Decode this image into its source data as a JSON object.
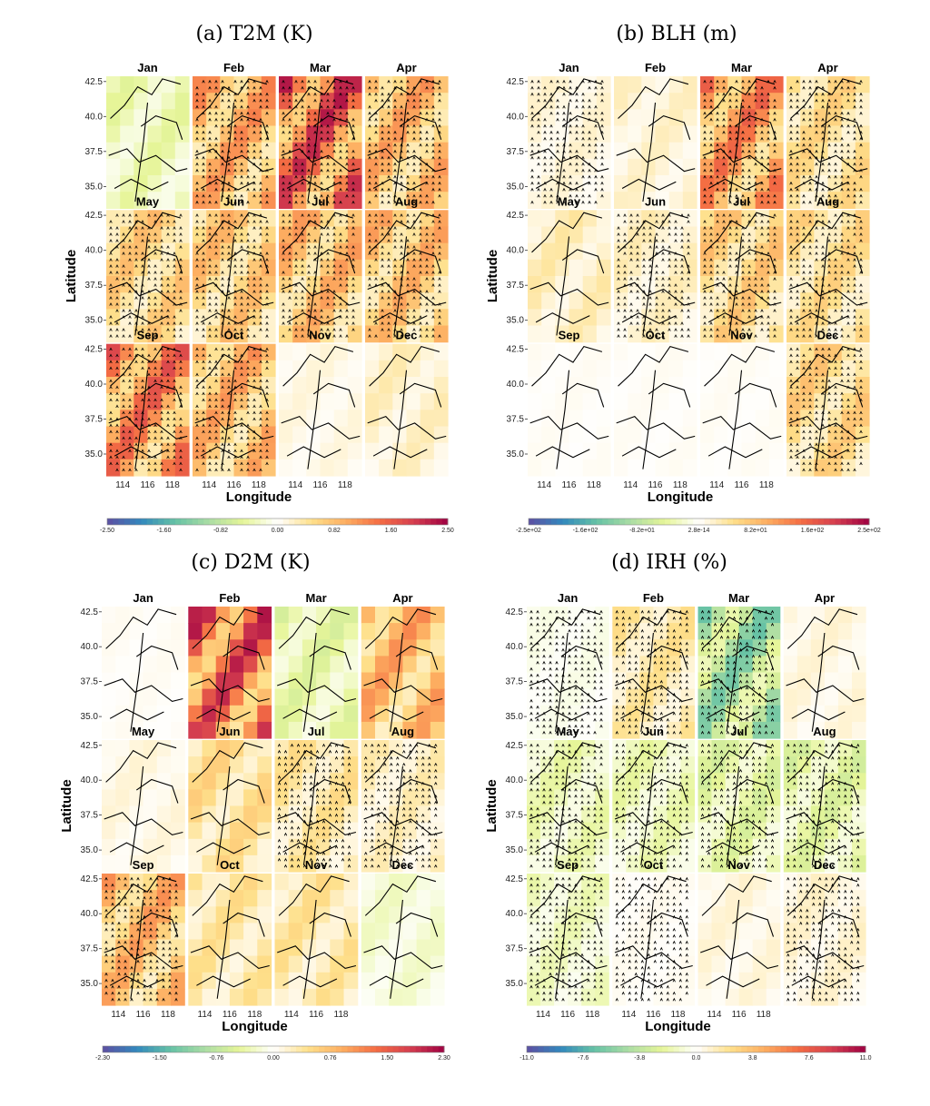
{
  "chart_data": [
    {
      "type": "heatmap",
      "title": "(a) T2M (K)",
      "panels": [
        "Jan",
        "Feb",
        "Mar",
        "Apr",
        "May",
        "Jun",
        "Jul",
        "Aug",
        "Sep",
        "Oct",
        "Nov",
        "Dec"
      ],
      "panel_mean": [
        -0.45,
        1.15,
        1.95,
        1.05,
        0.75,
        0.85,
        1.0,
        0.95,
        1.55,
        1.05,
        0.15,
        0.3
      ],
      "stippled": [
        false,
        true,
        true,
        true,
        true,
        true,
        true,
        true,
        true,
        true,
        false,
        false
      ],
      "xlabel": "Longitude",
      "ylabel": "Latitude",
      "xticks": [
        "114",
        "116",
        "118"
      ],
      "yticks": [
        "42.5",
        "40.0",
        "37.5",
        "35.0"
      ],
      "colorbar_range": [
        -2.5,
        2.5
      ],
      "colorbar_ticks": [
        "-2.50",
        "-1.60",
        "-0.82",
        "0.00",
        "0.82",
        "1.60",
        "2.50"
      ]
    },
    {
      "type": "heatmap",
      "title": "(b) BLH (m)",
      "panels": [
        "Jan",
        "Feb",
        "Mar",
        "Apr",
        "May",
        "Jun",
        "Jul",
        "Aug",
        "Sep",
        "Oct",
        "Nov",
        "Dec"
      ],
      "panel_mean": [
        20,
        25,
        140,
        60,
        35,
        30,
        75,
        60,
        5,
        5,
        5,
        70
      ],
      "stippled": [
        true,
        false,
        true,
        true,
        false,
        true,
        true,
        true,
        false,
        false,
        false,
        true
      ],
      "xlabel": "Longitude",
      "ylabel": "Latitude",
      "xticks": [
        "114",
        "116",
        "118"
      ],
      "yticks": [
        "42.5",
        "40.0",
        "37.5",
        "35.0"
      ],
      "colorbar_range": [
        -250,
        250
      ],
      "colorbar_ticks": [
        "-2.5e+02",
        "-1.6e+02",
        "-8.2e+01",
        "2.8e-14",
        "8.2e+01",
        "1.6e+02",
        "2.5e+02"
      ]
    },
    {
      "type": "heatmap",
      "title": "(c) D2M (K)",
      "panels": [
        "Jan",
        "Feb",
        "Mar",
        "Apr",
        "May",
        "Jun",
        "Jul",
        "Aug",
        "Sep",
        "Oct",
        "Nov",
        "Dec"
      ],
      "panel_mean": [
        0.05,
        1.8,
        -0.5,
        1.0,
        0.15,
        0.55,
        0.45,
        0.3,
        0.95,
        0.45,
        0.45,
        -0.25
      ],
      "stippled": [
        false,
        false,
        false,
        false,
        false,
        false,
        true,
        true,
        true,
        false,
        false,
        false
      ],
      "xlabel": "Longitude",
      "ylabel": "Latitude",
      "xticks": [
        "114",
        "116",
        "118"
      ],
      "yticks": [
        "42.5",
        "40.0",
        "37.5",
        "35.0"
      ],
      "colorbar_range": [
        -2.3,
        2.3
      ],
      "colorbar_ticks": [
        "-2.30",
        "-1.50",
        "-0.76",
        "0.00",
        "0.76",
        "1.50",
        "2.30"
      ]
    },
    {
      "type": "heatmap",
      "title": "(d) IRH (%)",
      "panels": [
        "Jan",
        "Feb",
        "Mar",
        "Apr",
        "May",
        "Jun",
        "Jul",
        "Aug",
        "Sep",
        "Oct",
        "Nov",
        "Dec"
      ],
      "panel_mean": [
        -0.5,
        2.0,
        -5.5,
        0.8,
        -1.8,
        -1.8,
        -2.5,
        -2.5,
        -1.5,
        0.3,
        0.8,
        1.0
      ],
      "stippled": [
        true,
        true,
        true,
        false,
        true,
        true,
        true,
        true,
        true,
        true,
        false,
        true
      ],
      "xlabel": "Longitude",
      "ylabel": "Latitude",
      "xticks": [
        "114",
        "116",
        "118"
      ],
      "yticks": [
        "42.5",
        "40.0",
        "37.5",
        "35.0"
      ],
      "colorbar_range": [
        -11.0,
        11.0
      ],
      "colorbar_ticks": [
        "-11.0",
        "-7.6",
        "-3.8",
        "0.0",
        "3.8",
        "7.6",
        "11.0"
      ]
    }
  ],
  "colors": {
    "scale": [
      "#5e4fa2",
      "#3288bd",
      "#66c2a5",
      "#abdda4",
      "#e6f598",
      "#ffffff",
      "#fee08b",
      "#fdae61",
      "#f46d43",
      "#d53e4f",
      "#9e0142"
    ],
    "border": "#000000",
    "stipple": "#000000"
  }
}
